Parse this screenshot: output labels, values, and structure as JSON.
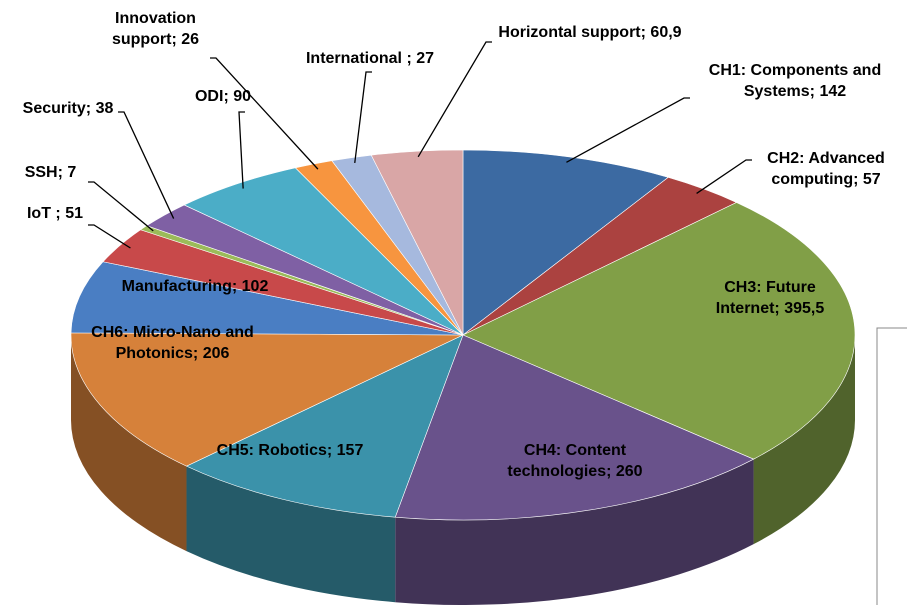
{
  "chart_data": {
    "type": "pie3d",
    "categories": [
      "CH1: Components and Systems",
      "CH2: Advanced computing",
      "CH3: Future Internet",
      "CH4: Content technologies",
      "CH5: Robotics",
      "CH6: Micro-Nano and Photonics",
      "Manufacturing",
      "IoT ",
      "SSH",
      "Security",
      "ODI",
      "Innovation support",
      "International ",
      "Horizontal support"
    ],
    "values": [
      142,
      57,
      395.5,
      260,
      157,
      206,
      102,
      51,
      7,
      38,
      90,
      26,
      27,
      60.9
    ],
    "value_labels": [
      "142",
      "57",
      "395,5",
      "260",
      "157",
      "206",
      "102",
      "51",
      "7",
      "38",
      "90",
      "26",
      "27",
      "60,9"
    ],
    "separator": ";",
    "colors": [
      "#3c6aa2",
      "#ab4240",
      "#819f47",
      "#69528b",
      "#3b92aa",
      "#d6813a",
      "#4a7ec3",
      "#c8494a",
      "#9bbb59",
      "#7f60a4",
      "#4badc7",
      "#f7953f",
      "#a6b9de",
      "#d9a6a6"
    ]
  }
}
